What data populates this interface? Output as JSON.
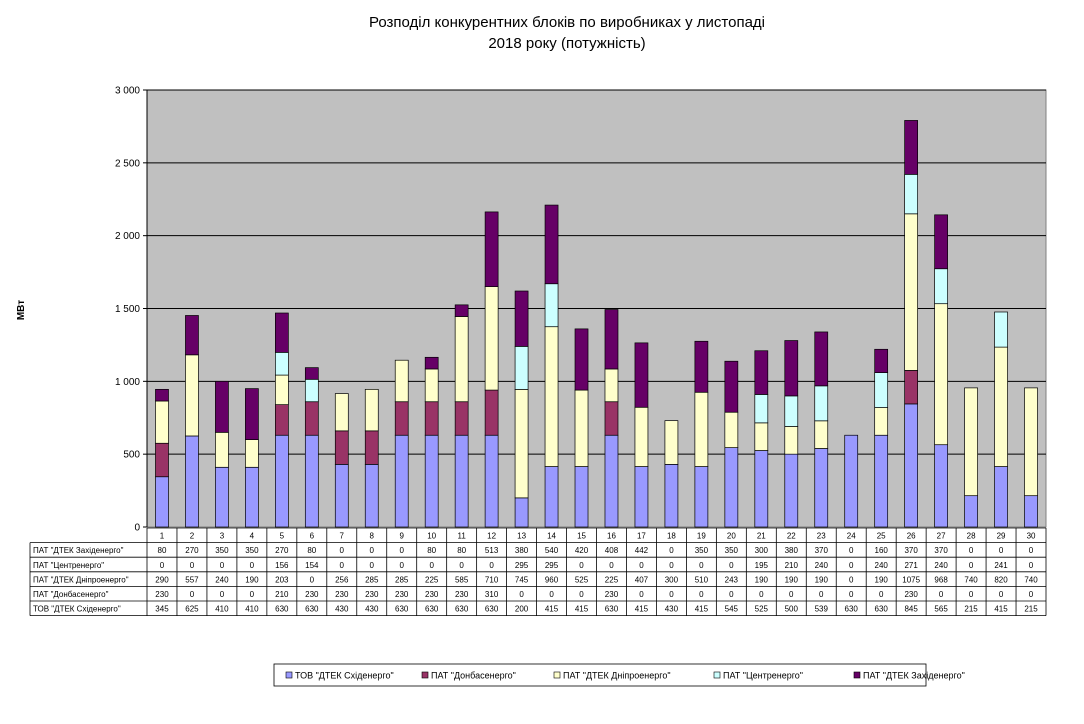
{
  "chart_data": {
    "type": "bar",
    "stacked": true,
    "title_lines": [
      "Розподіл конкурентних  блоків по виробниках  у листопаді",
      "2018 року (потужність)"
    ],
    "ylabel": "МВт",
    "ylim": [
      0,
      3000
    ],
    "yticks": [
      0,
      500,
      1000,
      1500,
      2000,
      2500,
      3000
    ],
    "ytick_labels": [
      "0",
      "500",
      "1 000",
      "1 500",
      "2 000",
      "2 500",
      "3 000"
    ],
    "grid": true,
    "legend_position": "bottom",
    "categories": [
      "1",
      "2",
      "3",
      "4",
      "5",
      "6",
      "7",
      "8",
      "9",
      "10",
      "11",
      "12",
      "13",
      "14",
      "15",
      "16",
      "17",
      "18",
      "19",
      "20",
      "21",
      "22",
      "23",
      "24",
      "25",
      "26",
      "27",
      "28",
      "29",
      "30"
    ],
    "series": [
      {
        "name": "ТОВ \"ДТЕК Східенерго\"",
        "color": "#9999ff",
        "values": [
          345,
          625,
          410,
          410,
          630,
          630,
          430,
          430,
          630,
          630,
          630,
          630,
          200,
          415,
          415,
          630,
          415,
          430,
          415,
          545,
          525,
          500,
          539,
          630,
          630,
          845,
          565,
          215,
          415,
          215
        ]
      },
      {
        "name": "ПАТ \"Донбасенерго\"",
        "color": "#993366",
        "values": [
          230,
          0,
          0,
          0,
          210,
          230,
          230,
          230,
          230,
          230,
          230,
          310,
          0,
          0,
          0,
          230,
          0,
          0,
          0,
          0,
          0,
          0,
          0,
          0,
          0,
          230,
          0,
          0,
          0,
          0
        ]
      },
      {
        "name": "ПАТ \"ДТЕК Дніпроенерго\"",
        "color": "#ffffcc",
        "values": [
          290,
          557,
          240,
          190,
          203,
          0,
          256,
          285,
          285,
          225,
          585,
          710,
          745,
          960,
          525,
          225,
          407,
          300,
          510,
          243,
          190,
          190,
          190,
          0,
          190,
          1075,
          968,
          740,
          820,
          740
        ]
      },
      {
        "name": "ПАТ \"Центренерго\"",
        "color": "#ccffff",
        "values": [
          0,
          0,
          0,
          0,
          156,
          154,
          0,
          0,
          0,
          0,
          0,
          0,
          295,
          295,
          0,
          0,
          0,
          0,
          0,
          0,
          195,
          210,
          240,
          0,
          240,
          271,
          240,
          0,
          241,
          0
        ]
      },
      {
        "name": "ПАТ \"ДТЕК Західенерго\"",
        "color": "#660066",
        "values": [
          80,
          270,
          350,
          350,
          270,
          80,
          0,
          0,
          0,
          80,
          80,
          513,
          380,
          540,
          420,
          408,
          442,
          0,
          350,
          350,
          300,
          380,
          370,
          0,
          160,
          370,
          370,
          0,
          0,
          0
        ]
      }
    ],
    "table_row_order": [
      4,
      3,
      2,
      1,
      0
    ],
    "table_row_labels": [
      "ПАТ \"ДТЕК Західенерго\"",
      "ПАТ \"Центренерго\"",
      "ПАТ \"ДТЕК Дніпроенерго\"",
      "ПАТ \"Донбасенерго\"",
      "ТОВ \"ДТЕК Східенерго\""
    ],
    "legend_labels": [
      "ТОВ \"ДТЕК Східенерго\"",
      "ПАТ \"Донбасенерго\"",
      "ПАТ \"ДТЕК Дніпроенерго\"",
      "ПАТ \"Центренерго\"",
      "ПАТ \"ДТЕК Західенерго\""
    ],
    "plot_background": "#c0c0c0"
  }
}
